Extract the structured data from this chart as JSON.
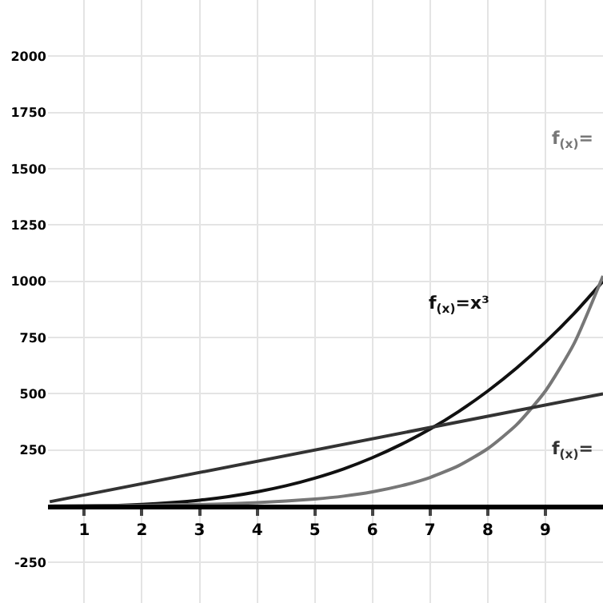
{
  "chart_data": {
    "type": "line",
    "series": [
      {
        "name": "f$_{(x)}$=x³",
        "color": "#111111",
        "x": [
          0.4,
          1,
          1.5,
          2,
          2.5,
          3,
          3.5,
          4,
          4.5,
          5,
          5.5,
          6,
          6.5,
          7,
          7.5,
          8,
          8.5,
          9,
          9.5,
          10
        ],
        "values": [
          0,
          1,
          3,
          8,
          16,
          27,
          43,
          64,
          91,
          125,
          166,
          216,
          275,
          343,
          422,
          512,
          614,
          729,
          857,
          1000
        ]
      },
      {
        "name": "f$_{(x)}$=",
        "color": "#777777",
        "x": [
          0.4,
          1,
          1.5,
          2,
          2.5,
          3,
          3.5,
          4,
          4.5,
          5,
          5.5,
          6,
          6.5,
          7,
          7.5,
          8,
          8.5,
          9,
          9.5,
          10
        ],
        "values": [
          1,
          2,
          3,
          4,
          6,
          8,
          11,
          16,
          23,
          32,
          45,
          64,
          91,
          128,
          181,
          256,
          362,
          512,
          724,
          1024
        ]
      },
      {
        "name": "f$_{(x)}$=",
        "color": "#333333",
        "x": [
          0.4,
          10
        ],
        "values": [
          20,
          500
        ]
      }
    ],
    "xlim": [
      0.37,
      10
    ],
    "ylim": [
      -430,
      2250
    ],
    "xticks": [
      1,
      2,
      3,
      4,
      5,
      6,
      7,
      8,
      9
    ],
    "yticks": [
      -250,
      250,
      500,
      750,
      1000,
      1250,
      1500,
      1750,
      2000
    ],
    "grid": true,
    "legend": false,
    "marker": "none",
    "line_style": "solid"
  }
}
